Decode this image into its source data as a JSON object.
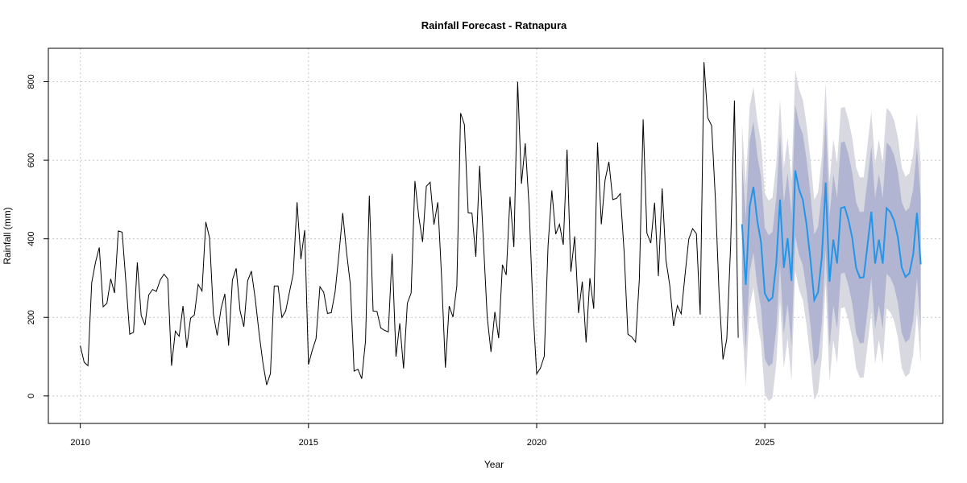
{
  "chart_data": {
    "type": "line",
    "title": "Rainfall Forecast - Ratnapura",
    "xlabel": "Year",
    "ylabel": "Rainfall (mm)",
    "xlim": [
      2009.3,
      2028.9
    ],
    "ylim": [
      -70,
      885
    ],
    "x_ticks": [
      2010,
      2015,
      2020,
      2025
    ],
    "y_ticks": [
      0,
      200,
      400,
      600,
      800
    ],
    "grid": true,
    "colors": {
      "history": "#000000",
      "forecast": "#2196e8",
      "band80": "#b1b5d2",
      "band95": "#d8d8e0",
      "grid": "#c8c8c8"
    },
    "history_start": "2010-01",
    "history": [
      128,
      86,
      77,
      288,
      340,
      378,
      227,
      236,
      298,
      262,
      420,
      417,
      288,
      157,
      162,
      340,
      205,
      180,
      257,
      271,
      266,
      295,
      310,
      298,
      77,
      165,
      152,
      229,
      123,
      198,
      206,
      284,
      267,
      443,
      402,
      208,
      154,
      222,
      260,
      128,
      295,
      325,
      217,
      176,
      293,
      318,
      248,
      160,
      85,
      28,
      57,
      280,
      280,
      200,
      216,
      264,
      311,
      493,
      348,
      422,
      80,
      116,
      146,
      278,
      264,
      210,
      212,
      264,
      360,
      466,
      367,
      285,
      63,
      68,
      44,
      140,
      510,
      216,
      215,
      173,
      167,
      163,
      362,
      100,
      185,
      70,
      236,
      262,
      547,
      456,
      392,
      534,
      544,
      436,
      493,
      302,
      72,
      229,
      201,
      280,
      720,
      691,
      466,
      465,
      354,
      586,
      393,
      201,
      112,
      214,
      147,
      334,
      308,
      507,
      379,
      800,
      540,
      643,
      486,
      225,
      56,
      71,
      101,
      382,
      523,
      412,
      437,
      385,
      627,
      316,
      406,
      211,
      291,
      136,
      300,
      222,
      645,
      437,
      550,
      596,
      500,
      503,
      515,
      367,
      157,
      150,
      137,
      297,
      704,
      414,
      389,
      492,
      305,
      528,
      346,
      282,
      178,
      230,
      209,
      306,
      399,
      426,
      413,
      207,
      850,
      708,
      688,
      500,
      253,
      93,
      145,
      383,
      752,
      148
    ],
    "forecast_start": "2024-07",
    "forecast": [
      437,
      283,
      482,
      532,
      447,
      391,
      261,
      242,
      250,
      337,
      500,
      326,
      402,
      293,
      574,
      526,
      499,
      434,
      346,
      244,
      264,
      354,
      543,
      291,
      398,
      337,
      478,
      481,
      447,
      401,
      326,
      301,
      302,
      385,
      469,
      337,
      398,
      337,
      478,
      468,
      446,
      403,
      327,
      303,
      312,
      360,
      466,
      335
    ],
    "lo80": [
      270,
      115,
      315,
      365,
      280,
      224,
      94,
      75,
      83,
      170,
      333,
      159,
      235,
      126,
      407,
      359,
      332,
      267,
      179,
      77,
      97,
      187,
      376,
      124,
      231,
      170,
      311,
      314,
      280,
      234,
      159,
      134,
      135,
      218,
      302,
      170,
      231,
      170,
      311,
      301,
      279,
      236,
      160,
      136,
      145,
      193,
      299,
      168
    ],
    "hi80": [
      604,
      451,
      649,
      699,
      614,
      558,
      428,
      409,
      417,
      504,
      667,
      493,
      569,
      460,
      741,
      693,
      666,
      601,
      513,
      411,
      431,
      521,
      710,
      458,
      565,
      504,
      645,
      648,
      614,
      568,
      493,
      468,
      469,
      552,
      636,
      504,
      565,
      504,
      645,
      635,
      613,
      570,
      494,
      470,
      479,
      527,
      633,
      502
    ],
    "lo95": [
      181,
      27,
      227,
      277,
      192,
      136,
      6,
      -13,
      -5,
      82,
      245,
      71,
      147,
      38,
      319,
      271,
      244,
      179,
      91,
      -11,
      9,
      99,
      288,
      36,
      143,
      82,
      223,
      226,
      192,
      146,
      71,
      46,
      47,
      130,
      214,
      82,
      143,
      82,
      223,
      213,
      191,
      148,
      72,
      48,
      57,
      105,
      211,
      80
    ],
    "hi95": [
      692,
      539,
      737,
      787,
      702,
      646,
      516,
      497,
      505,
      592,
      755,
      581,
      657,
      548,
      829,
      781,
      754,
      689,
      601,
      499,
      519,
      609,
      798,
      546,
      653,
      592,
      733,
      736,
      702,
      656,
      581,
      556,
      557,
      640,
      724,
      592,
      653,
      592,
      733,
      723,
      701,
      658,
      582,
      558,
      567,
      615,
      721,
      590
    ]
  }
}
